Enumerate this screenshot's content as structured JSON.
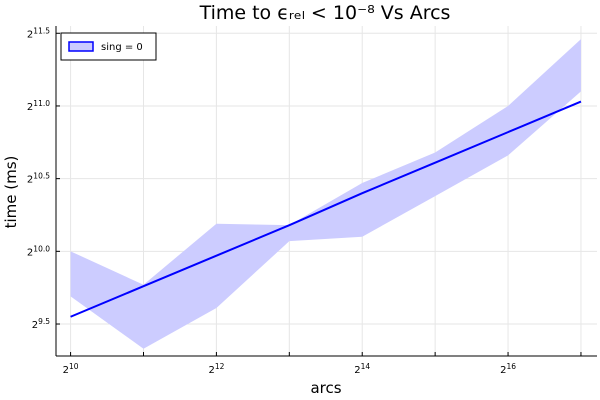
{
  "chart_data": {
    "type": "line",
    "title": "Time to ϵᵣₑₗ < 10⁻⁸ Vs Arcs",
    "xlabel": "arcs",
    "ylabel": "time (ms)",
    "x_scale": "log2",
    "y_scale": "log2",
    "x_exponents": [
      10,
      11,
      12,
      13,
      14,
      15,
      16,
      17
    ],
    "xlim_exponents": [
      9.8,
      17.22
    ],
    "ylim_exponents": [
      9.28,
      11.55
    ],
    "x_ticks": [
      {
        "base": "2",
        "exp": "10"
      },
      {
        "base": "2",
        "exp": "12"
      },
      {
        "base": "2",
        "exp": "14"
      },
      {
        "base": "2",
        "exp": "16"
      }
    ],
    "x_tick_exponents": [
      10,
      12,
      14,
      16
    ],
    "x_minor_tick_exponents": [
      11,
      13,
      15,
      17
    ],
    "y_ticks": [
      {
        "base": "2",
        "exp": "9.5"
      },
      {
        "base": "2",
        "exp": "10.0"
      },
      {
        "base": "2",
        "exp": "10.5"
      },
      {
        "base": "2",
        "exp": "11.0"
      },
      {
        "base": "2",
        "exp": "11.5"
      }
    ],
    "y_tick_exponents": [
      9.5,
      10.0,
      10.5,
      11.0,
      11.5
    ],
    "series": [
      {
        "name": "sing = 0",
        "color": "#0000ff",
        "y_exponents": [
          9.55,
          9.76,
          9.97,
          10.18,
          10.4,
          10.61,
          10.82,
          11.03
        ],
        "band_upper_exponents": [
          10.0,
          9.77,
          10.19,
          10.18,
          10.47,
          10.68,
          11.0,
          11.46
        ],
        "band_lower_exponents": [
          9.69,
          9.33,
          9.61,
          10.07,
          10.1,
          10.38,
          10.66,
          11.1
        ]
      }
    ],
    "band_color": "#ccccff",
    "legend": {
      "position": "top-left",
      "entries": [
        "sing = 0"
      ]
    },
    "grid": true
  }
}
